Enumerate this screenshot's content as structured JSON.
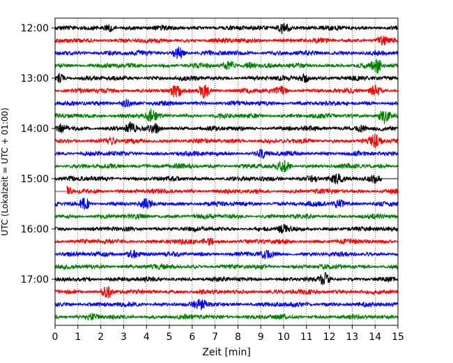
{
  "chart_data": {
    "type": "line",
    "title": "",
    "xlabel": "Zeit  [min]",
    "ylabel": "UTC (Lokalzeit = UTC + 01:00)",
    "xlim": [
      0,
      15
    ],
    "x_ticks": [
      "0",
      "1",
      "2",
      "3",
      "4",
      "5",
      "6",
      "7",
      "8",
      "9",
      "10",
      "11",
      "12",
      "13",
      "14",
      "15"
    ],
    "y_ticks": [
      "12:00",
      "13:00",
      "14:00",
      "15:00",
      "16:00",
      "17:00"
    ],
    "grid": "vertical dotted",
    "series_colors": [
      "#000000",
      "#ff0000",
      "#0000ff",
      "#008000"
    ],
    "traces": [
      {
        "start": "12:00",
        "events": [
          {
            "x": 2.4,
            "a": 1.6
          },
          {
            "x": 10.0,
            "a": 3.2
          }
        ]
      },
      {
        "start": "12:15",
        "events": [
          {
            "x": 14.3,
            "a": 1.6
          }
        ]
      },
      {
        "start": "12:30",
        "events": [
          {
            "x": 5.4,
            "a": 2.5
          }
        ]
      },
      {
        "start": "12:45",
        "events": [
          {
            "x": 7.6,
            "a": 2.0
          },
          {
            "x": 8.5,
            "a": 1.6
          },
          {
            "x": 14.1,
            "a": 2.8
          }
        ]
      },
      {
        "start": "13:00",
        "events": [
          {
            "x": 0.2,
            "a": 1.8
          },
          {
            "x": 10.9,
            "a": 2.0
          }
        ]
      },
      {
        "start": "13:15",
        "events": [
          {
            "x": 5.3,
            "a": 2.6
          },
          {
            "x": 6.5,
            "a": 2.8
          },
          {
            "x": 9.9,
            "a": 1.4
          },
          {
            "x": 14.0,
            "a": 2.5
          }
        ]
      },
      {
        "start": "13:30",
        "events": [
          {
            "x": 3.1,
            "a": 1.6
          }
        ]
      },
      {
        "start": "13:45",
        "events": [
          {
            "x": 4.2,
            "a": 2.0
          },
          {
            "x": 14.4,
            "a": 2.8
          }
        ]
      },
      {
        "start": "14:00",
        "events": [
          {
            "x": 0.3,
            "a": 1.8
          },
          {
            "x": 3.3,
            "a": 2.2
          },
          {
            "x": 4.4,
            "a": 1.8
          },
          {
            "x": 13.4,
            "a": 1.4
          }
        ]
      },
      {
        "start": "14:15",
        "events": [
          {
            "x": 2.4,
            "a": 1.4
          },
          {
            "x": 14.0,
            "a": 2.4
          }
        ]
      },
      {
        "start": "14:30",
        "events": [
          {
            "x": 9.1,
            "a": 1.6
          }
        ]
      },
      {
        "start": "14:45",
        "events": [
          {
            "x": 10.0,
            "a": 2.2
          }
        ]
      },
      {
        "start": "15:00",
        "events": [
          {
            "x": 11.3,
            "a": 1.6
          },
          {
            "x": 12.3,
            "a": 1.6
          },
          {
            "x": 14.0,
            "a": 1.8
          }
        ],
        "end": 14.3
      },
      {
        "start": "15:15",
        "events": [
          {
            "x": 0.5,
            "a": 1.6
          }
        ],
        "begin": 0.5
      },
      {
        "start": "15:30",
        "events": [
          {
            "x": 1.3,
            "a": 2.4
          },
          {
            "x": 4.0,
            "a": 2.0
          },
          {
            "x": 12.4,
            "a": 1.8
          }
        ]
      },
      {
        "start": "15:45",
        "events": []
      },
      {
        "start": "16:00",
        "events": [
          {
            "x": 10.0,
            "a": 1.4
          }
        ]
      },
      {
        "start": "16:15",
        "events": [
          {
            "x": 6.7,
            "a": 1.4
          }
        ]
      },
      {
        "start": "16:30",
        "events": [
          {
            "x": 3.4,
            "a": 2.0
          },
          {
            "x": 9.2,
            "a": 1.4
          }
        ]
      },
      {
        "start": "16:45",
        "events": []
      },
      {
        "start": "17:00",
        "events": [
          {
            "x": 11.8,
            "a": 2.2
          }
        ]
      },
      {
        "start": "17:15",
        "events": [
          {
            "x": 2.3,
            "a": 2.6
          }
        ]
      },
      {
        "start": "17:30",
        "events": [
          {
            "x": 6.4,
            "a": 1.8
          }
        ]
      },
      {
        "start": "17:45",
        "events": [
          {
            "x": 1.6,
            "a": 1.0
          }
        ]
      }
    ]
  }
}
